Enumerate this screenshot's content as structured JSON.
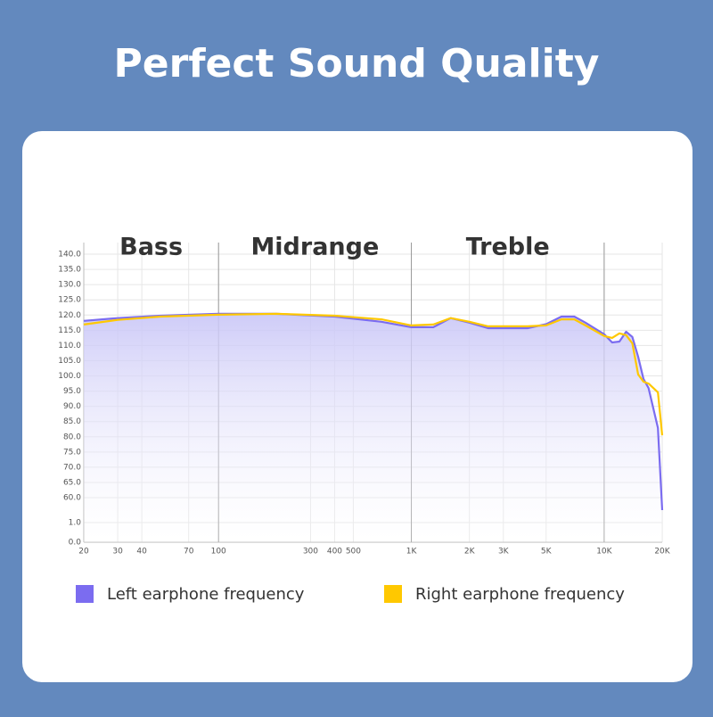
{
  "chart_data": {
    "type": "line",
    "title": "Perfect Sound Quality",
    "x": [
      20,
      30,
      50,
      100,
      200,
      400,
      700,
      1000,
      1300,
      1600,
      2000,
      2500,
      4000,
      5000,
      6000,
      7000,
      8000,
      10000,
      11000,
      12000,
      13000,
      14000,
      15000,
      16000,
      17000,
      19000,
      20000
    ],
    "series": [
      {
        "name": "Left earphone frequency",
        "color": "#7b6cf0",
        "values": [
          118.1,
          119,
          119.8,
          120.4,
          120.4,
          119.5,
          117.8,
          116,
          116,
          119,
          117.5,
          115.7,
          115.7,
          117,
          119.5,
          119.5,
          117.5,
          113.7,
          111,
          111.3,
          114.5,
          112.8,
          106.3,
          99,
          96,
          82.9,
          30.5
        ]
      },
      {
        "name": "Right earphone frequency",
        "color": "#ffc800",
        "values": [
          116.9,
          118.4,
          119.5,
          120.1,
          120.4,
          119.8,
          118.6,
          116.6,
          116.9,
          119,
          117.8,
          116.3,
          116.3,
          116.6,
          118.6,
          118.6,
          116.6,
          113.1,
          112.5,
          114,
          113.4,
          110.7,
          100.5,
          98.1,
          97.5,
          94.6,
          80.5
        ]
      }
    ],
    "log_x": true,
    "xlim": [
      20,
      20000
    ],
    "xticks": [
      20,
      30,
      40,
      70,
      100,
      300,
      400,
      500,
      {
        "value": 1000,
        "label": "1K"
      },
      {
        "value": 2000,
        "label": "2K"
      },
      {
        "value": 3000,
        "label": "3K"
      },
      {
        "value": 5000,
        "label": "5K"
      },
      {
        "value": 10000,
        "label": "10K"
      },
      {
        "value": 20000,
        "label": "20K"
      }
    ],
    "ylim": [
      0,
      140
    ],
    "yticks": [
      {
        "value": 0,
        "label": "0.0"
      },
      {
        "value": 1,
        "label": "1.0"
      },
      {
        "value": 60,
        "label": "60.0"
      },
      {
        "value": 65,
        "label": "65.0"
      },
      {
        "value": 70,
        "label": "70.0"
      },
      {
        "value": 75,
        "label": "75.0"
      },
      {
        "value": 80,
        "label": "80.0"
      },
      {
        "value": 85,
        "label": "85.0"
      },
      {
        "value": 90,
        "label": "90.0"
      },
      {
        "value": 95,
        "label": "95.0"
      },
      {
        "value": 100,
        "label": "100.0"
      },
      {
        "value": 105,
        "label": "105.0"
      },
      {
        "value": 110,
        "label": "110.0"
      },
      {
        "value": 115,
        "label": "115.0"
      },
      {
        "value": 120,
        "label": "120.0"
      },
      {
        "value": 125,
        "label": "125.0"
      },
      {
        "value": 130,
        "label": "130.0"
      },
      {
        "value": 135,
        "label": "135.0"
      },
      {
        "value": 140,
        "label": "140.0"
      }
    ],
    "grid": true,
    "dividers": [
      100,
      1000,
      10000
    ],
    "annotations": [
      "Bass",
      "Midrange",
      "Treble"
    ]
  }
}
